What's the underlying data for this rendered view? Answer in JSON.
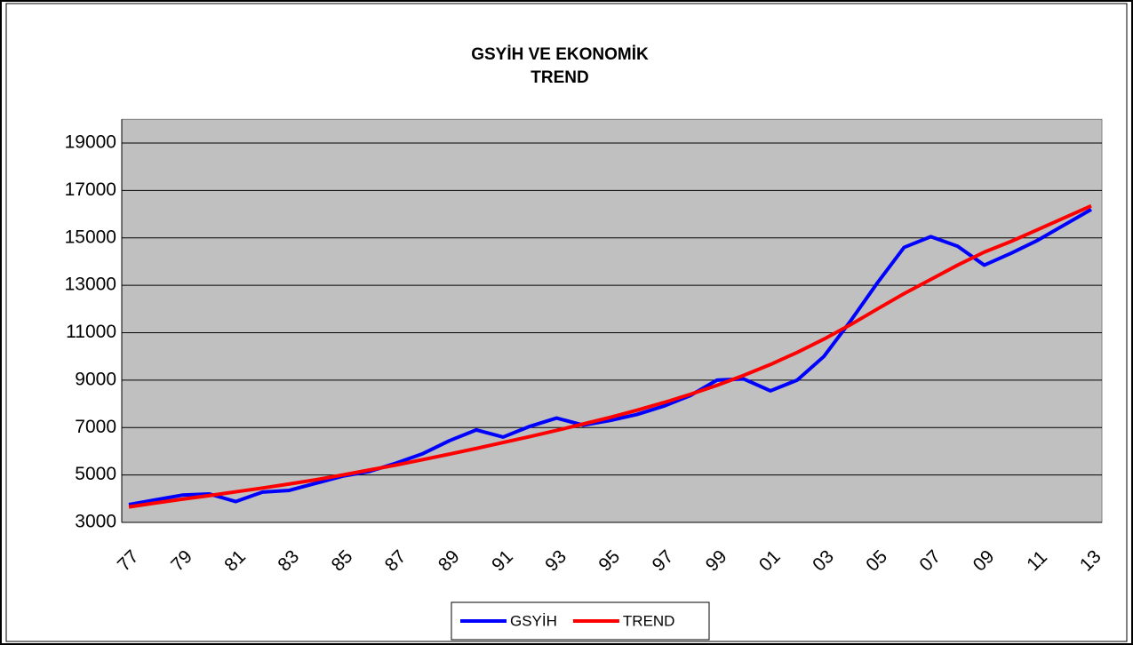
{
  "chart_data": {
    "type": "line",
    "title": [
      "GSYİH VE EKONOMİK",
      "TREND"
    ],
    "categories": [
      "77",
      null,
      "79",
      null,
      "81",
      null,
      "83",
      null,
      "85",
      null,
      "87",
      null,
      "89",
      null,
      "91",
      null,
      "93",
      null,
      "95",
      null,
      "97",
      null,
      "99",
      null,
      "01",
      null,
      "03",
      null,
      "05",
      null,
      "07",
      null,
      "09",
      null,
      "11",
      null,
      "13"
    ],
    "series": [
      {
        "name": "GSYİH",
        "color": "#0000ff",
        "values": [
          3750,
          3950,
          4150,
          4200,
          3880,
          4280,
          4350,
          4650,
          4950,
          5150,
          5500,
          5900,
          6450,
          6900,
          6600,
          7050,
          7400,
          7100,
          7300,
          7550,
          7900,
          8350,
          9000,
          9050,
          8550,
          9000,
          10000,
          11500,
          13100,
          14600,
          15050,
          14650,
          13850,
          14350,
          14900,
          15550,
          16200
        ]
      },
      {
        "name": "TREND",
        "color": "#ff0000",
        "values": [
          3650,
          3820,
          3980,
          4130,
          4290,
          4450,
          4620,
          4800,
          5000,
          5210,
          5420,
          5650,
          5880,
          6120,
          6370,
          6620,
          6880,
          7150,
          7430,
          7730,
          8050,
          8400,
          8780,
          9200,
          9660,
          10170,
          10730,
          11340,
          12000,
          12650,
          13250,
          13850,
          14400,
          14850,
          15350,
          15850,
          16350
        ]
      }
    ],
    "ylim": [
      3000,
      20000
    ],
    "yticks": [
      3000,
      5000,
      7000,
      9000,
      11000,
      13000,
      15000,
      17000,
      19000
    ],
    "grid": true,
    "legend": "bottom"
  }
}
